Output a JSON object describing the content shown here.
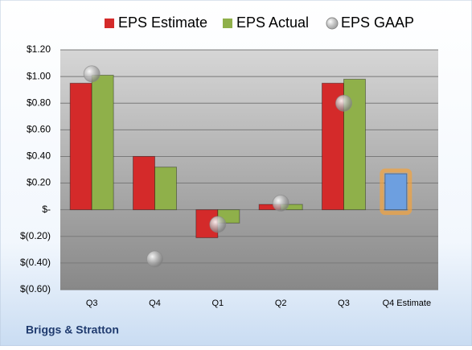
{
  "chart_data": {
    "type": "bar",
    "categories": [
      "Q3",
      "Q4",
      "Q1",
      "Q2",
      "Q3",
      "Q4 Estimate"
    ],
    "series": [
      {
        "name": "EPS Estimate",
        "color": "#d42a2a",
        "values": [
          0.95,
          0.4,
          -0.21,
          0.04,
          0.95,
          0.27
        ],
        "colors": [
          "#d42a2a",
          "#d42a2a",
          "#d42a2a",
          "#d42a2a",
          "#d42a2a",
          "#6d9fe0"
        ],
        "glow_colors": [
          null,
          null,
          null,
          null,
          null,
          "#f4a23c"
        ]
      },
      {
        "name": "EPS Actual",
        "color": "#8fb04a",
        "values": [
          1.01,
          0.32,
          -0.1,
          0.04,
          0.98,
          null
        ]
      },
      {
        "name": "EPS GAAP",
        "color": "#a0a0a0",
        "marker": "circle",
        "values": [
          1.02,
          -0.37,
          -0.11,
          0.05,
          0.8,
          null
        ]
      }
    ],
    "ylim": [
      -0.6,
      1.2
    ],
    "yticks": [
      {
        "value": -0.6,
        "label": "$(0.60)"
      },
      {
        "value": -0.4,
        "label": "$(0.40)"
      },
      {
        "value": -0.2,
        "label": "$(0.20)"
      },
      {
        "value": 0,
        "label": "$-"
      },
      {
        "value": 0.2,
        "label": "$0.20"
      },
      {
        "value": 0.4,
        "label": "$0.40"
      },
      {
        "value": 0.6,
        "label": "$0.60"
      },
      {
        "value": 0.8,
        "label": "$0.80"
      },
      {
        "value": 1.0,
        "label": "$1.00"
      },
      {
        "value": 1.2,
        "label": "$1.20"
      }
    ],
    "grid": true,
    "legend": "top",
    "footer": "Briggs & Stratton"
  }
}
